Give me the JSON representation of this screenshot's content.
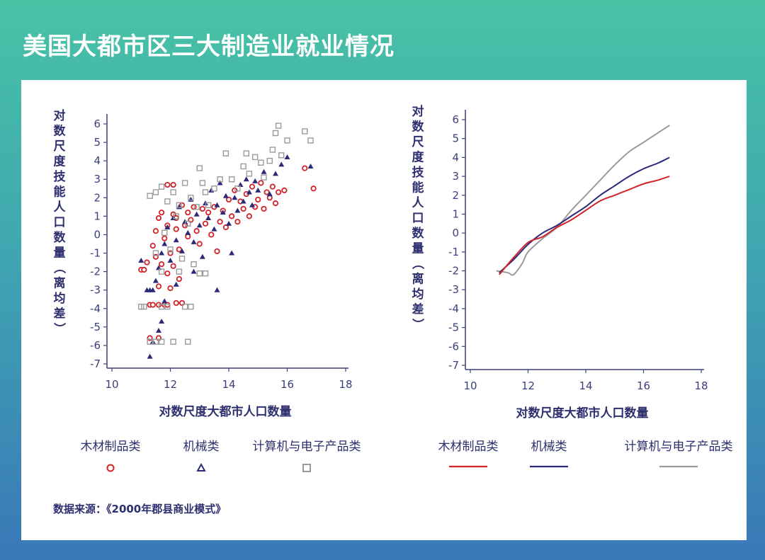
{
  "title": "美国大都市区三大制造业就业情况",
  "source": "数据来源：《2000年郡县商业模式》",
  "colors": {
    "wood": "#d2232a",
    "machinery": "#2b2a7a",
    "electronics": "#9a9a9a",
    "axis": "#3b3f7a"
  },
  "legend": {
    "wood": "木材制品类",
    "machinery": "机械类",
    "electronics": "计算机与电子产品类"
  },
  "chart_data": [
    {
      "type": "scatter",
      "ylabel": "对数尺度技能人口数量（离均差）",
      "xlabel": "对数尺度大都市人口数量",
      "xlim": [
        10,
        18
      ],
      "ylim": [
        -7,
        6
      ],
      "x_ticks": [
        "10",
        "12",
        "14",
        "16",
        "18"
      ],
      "y_ticks": [
        "6",
        "5",
        "4",
        "3",
        "2",
        "1",
        "0",
        "-1",
        "-2",
        "-3",
        "-4",
        "-5",
        "-6",
        "-7"
      ],
      "series": [
        {
          "name": "木材制品类",
          "marker": "circle",
          "points": [
            [
              11.0,
              -1.9
            ],
            [
              11.1,
              -1.9
            ],
            [
              11.3,
              -3.8
            ],
            [
              11.4,
              -3.8
            ],
            [
              11.6,
              -3.8
            ],
            [
              11.8,
              -3.8
            ],
            [
              11.9,
              -3.8
            ],
            [
              12.2,
              -3.7
            ],
            [
              12.4,
              -3.7
            ],
            [
              11.3,
              -5.6
            ],
            [
              11.6,
              -5.6
            ],
            [
              11.4,
              -0.6
            ],
            [
              11.5,
              0.2
            ],
            [
              11.6,
              0.9
            ],
            [
              11.7,
              1.2
            ],
            [
              11.8,
              -0.2
            ],
            [
              11.9,
              0.5
            ],
            [
              12.0,
              -1.0
            ],
            [
              12.1,
              1.1
            ],
            [
              12.2,
              0.3
            ],
            [
              12.3,
              -0.8
            ],
            [
              12.4,
              1.6
            ],
            [
              12.5,
              0.5
            ],
            [
              12.6,
              -0.1
            ],
            [
              12.7,
              0.8
            ],
            [
              12.8,
              1.5
            ],
            [
              12.9,
              0.2
            ],
            [
              13.0,
              -0.5
            ],
            [
              13.1,
              1.4
            ],
            [
              13.2,
              0.6
            ],
            [
              13.3,
              1.2
            ],
            [
              13.4,
              0.0
            ],
            [
              13.5,
              1.5
            ],
            [
              13.6,
              -0.9
            ],
            [
              13.7,
              0.7
            ],
            [
              13.8,
              1.3
            ],
            [
              13.9,
              0.4
            ],
            [
              14.0,
              1.9
            ],
            [
              14.1,
              1.0
            ],
            [
              14.2,
              2.4
            ],
            [
              14.3,
              0.7
            ],
            [
              14.4,
              1.8
            ],
            [
              14.5,
              1.4
            ],
            [
              14.6,
              2.2
            ],
            [
              14.7,
              1.0
            ],
            [
              14.8,
              2.6
            ],
            [
              14.9,
              1.5
            ],
            [
              15.0,
              1.9
            ],
            [
              15.1,
              2.8
            ],
            [
              15.2,
              1.4
            ],
            [
              15.3,
              2.3
            ],
            [
              15.4,
              2.0
            ],
            [
              15.5,
              2.6
            ],
            [
              15.6,
              1.7
            ],
            [
              15.7,
              2.3
            ],
            [
              15.9,
              2.4
            ],
            [
              16.6,
              3.6
            ],
            [
              16.9,
              2.5
            ],
            [
              11.9,
              2.7
            ],
            [
              12.1,
              2.7
            ],
            [
              11.5,
              -1.2
            ],
            [
              11.7,
              -1.6
            ],
            [
              11.9,
              -2.1
            ],
            [
              12.1,
              -1.7
            ],
            [
              12.3,
              -2.4
            ],
            [
              11.2,
              -1.5
            ],
            [
              11.6,
              -2.8
            ],
            [
              12.0,
              -2.9
            ],
            [
              12.2,
              0.9
            ],
            [
              12.6,
              1.2
            ]
          ]
        },
        {
          "name": "机械类",
          "marker": "triangle",
          "points": [
            [
              11.0,
              -1.4
            ],
            [
              11.2,
              -3.0
            ],
            [
              11.3,
              -3.0
            ],
            [
              11.4,
              -3.0
            ],
            [
              11.3,
              -6.6
            ],
            [
              11.4,
              -5.8
            ],
            [
              11.6,
              -5.2
            ],
            [
              11.7,
              -4.7
            ],
            [
              11.5,
              -2.5
            ],
            [
              11.6,
              -1.8
            ],
            [
              11.7,
              -1.0
            ],
            [
              11.8,
              -0.5
            ],
            [
              11.9,
              0.4
            ],
            [
              12.0,
              -1.4
            ],
            [
              12.1,
              0.9
            ],
            [
              12.2,
              -0.3
            ],
            [
              12.3,
              1.5
            ],
            [
              12.4,
              -0.9
            ],
            [
              12.5,
              0.7
            ],
            [
              12.6,
              0.1
            ],
            [
              12.7,
              1.9
            ],
            [
              12.8,
              -0.4
            ],
            [
              12.9,
              1.1
            ],
            [
              13.0,
              0.5
            ],
            [
              13.1,
              -1.2
            ],
            [
              13.2,
              1.7
            ],
            [
              13.3,
              0.9
            ],
            [
              13.4,
              2.4
            ],
            [
              13.5,
              0.3
            ],
            [
              13.6,
              1.6
            ],
            [
              13.7,
              2.8
            ],
            [
              13.8,
              1.2
            ],
            [
              13.9,
              2.1
            ],
            [
              14.0,
              0.6
            ],
            [
              14.1,
              -1.0
            ],
            [
              14.2,
              2.0
            ],
            [
              14.3,
              1.3
            ],
            [
              14.4,
              2.7
            ],
            [
              14.5,
              1.8
            ],
            [
              14.6,
              3.0
            ],
            [
              14.7,
              2.3
            ],
            [
              14.8,
              1.6
            ],
            [
              14.9,
              2.9
            ],
            [
              15.0,
              2.4
            ],
            [
              15.2,
              3.4
            ],
            [
              15.4,
              2.2
            ],
            [
              15.6,
              3.3
            ],
            [
              15.8,
              3.8
            ],
            [
              16.0,
              4.2
            ],
            [
              16.8,
              3.7
            ],
            [
              13.6,
              -3.0
            ],
            [
              12.8,
              -2.0
            ],
            [
              11.8,
              -3.6
            ],
            [
              12.2,
              -2.7
            ]
          ]
        },
        {
          "name": "计算机与电子产品类",
          "marker": "square",
          "points": [
            [
              11.0,
              -3.9
            ],
            [
              11.1,
              -3.9
            ],
            [
              11.7,
              -3.9
            ],
            [
              11.9,
              -3.9
            ],
            [
              12.5,
              -3.9
            ],
            [
              12.7,
              -3.9
            ],
            [
              11.3,
              -5.8
            ],
            [
              11.5,
              -5.8
            ],
            [
              11.7,
              -5.8
            ],
            [
              12.1,
              -5.8
            ],
            [
              12.6,
              -5.8
            ],
            [
              11.3,
              2.1
            ],
            [
              11.5,
              2.3
            ],
            [
              11.7,
              2.6
            ],
            [
              11.9,
              1.8
            ],
            [
              12.1,
              2.3
            ],
            [
              12.3,
              1.6
            ],
            [
              12.5,
              2.8
            ],
            [
              12.7,
              2.0
            ],
            [
              12.9,
              1.5
            ],
            [
              13.0,
              3.6
            ],
            [
              13.1,
              2.8
            ],
            [
              13.2,
              2.3
            ],
            [
              13.3,
              1.6
            ],
            [
              13.5,
              2.5
            ],
            [
              13.7,
              3.0
            ],
            [
              13.9,
              4.4
            ],
            [
              14.1,
              3.0
            ],
            [
              14.3,
              2.5
            ],
            [
              14.5,
              3.7
            ],
            [
              14.6,
              4.4
            ],
            [
              14.7,
              3.3
            ],
            [
              14.9,
              4.2
            ],
            [
              15.1,
              3.9
            ],
            [
              15.2,
              3.1
            ],
            [
              15.4,
              4.0
            ],
            [
              15.5,
              4.6
            ],
            [
              15.6,
              5.5
            ],
            [
              15.7,
              5.9
            ],
            [
              15.8,
              4.3
            ],
            [
              16.0,
              5.1
            ],
            [
              16.6,
              5.6
            ],
            [
              16.8,
              5.1
            ],
            [
              11.8,
              0.1
            ],
            [
              12.0,
              -0.8
            ],
            [
              12.2,
              1.0
            ],
            [
              12.4,
              -1.3
            ],
            [
              12.6,
              0.6
            ],
            [
              12.8,
              -1.6
            ],
            [
              13.0,
              -2.1
            ],
            [
              13.2,
              -2.1
            ],
            [
              11.5,
              -1.0
            ],
            [
              11.7,
              -2.0
            ],
            [
              12.3,
              -2.0
            ]
          ]
        }
      ]
    },
    {
      "type": "line",
      "ylabel": "对数尺度技能人口数量（离均差）",
      "xlabel": "对数尺度大都市人口数量",
      "xlim": [
        10,
        18
      ],
      "ylim": [
        -7,
        6
      ],
      "x_ticks": [
        "10",
        "12",
        "14",
        "16",
        "18"
      ],
      "y_ticks": [
        "6",
        "5",
        "4",
        "3",
        "2",
        "1",
        "0",
        "-1",
        "-2",
        "-3",
        "-4",
        "-5",
        "-6",
        "-7"
      ],
      "series": [
        {
          "name": "木材制品类",
          "x": [
            11.0,
            11.5,
            12.0,
            12.5,
            13.0,
            13.5,
            14.0,
            14.5,
            15.0,
            15.5,
            16.0,
            16.5,
            16.9
          ],
          "values": [
            -2.2,
            -1.3,
            -0.5,
            -0.2,
            0.3,
            0.7,
            1.2,
            1.7,
            2.0,
            2.3,
            2.6,
            2.8,
            3.0
          ]
        },
        {
          "name": "机械类",
          "x": [
            11.0,
            11.5,
            12.0,
            12.5,
            13.0,
            13.5,
            14.0,
            14.5,
            15.0,
            15.5,
            16.0,
            16.5,
            16.9
          ],
          "values": [
            -2.1,
            -1.4,
            -0.6,
            0.0,
            0.4,
            0.9,
            1.4,
            2.0,
            2.5,
            3.0,
            3.4,
            3.7,
            4.0
          ]
        },
        {
          "name": "计算机与电子产品类",
          "x": [
            10.9,
            11.3,
            11.5,
            11.8,
            12.0,
            12.5,
            13.0,
            13.5,
            14.0,
            14.5,
            15.0,
            15.5,
            16.0,
            16.5,
            16.9
          ],
          "values": [
            -2.0,
            -2.1,
            -2.2,
            -1.6,
            -1.0,
            -0.3,
            0.3,
            1.2,
            2.0,
            2.8,
            3.6,
            4.3,
            4.8,
            5.3,
            5.7
          ]
        }
      ]
    }
  ]
}
